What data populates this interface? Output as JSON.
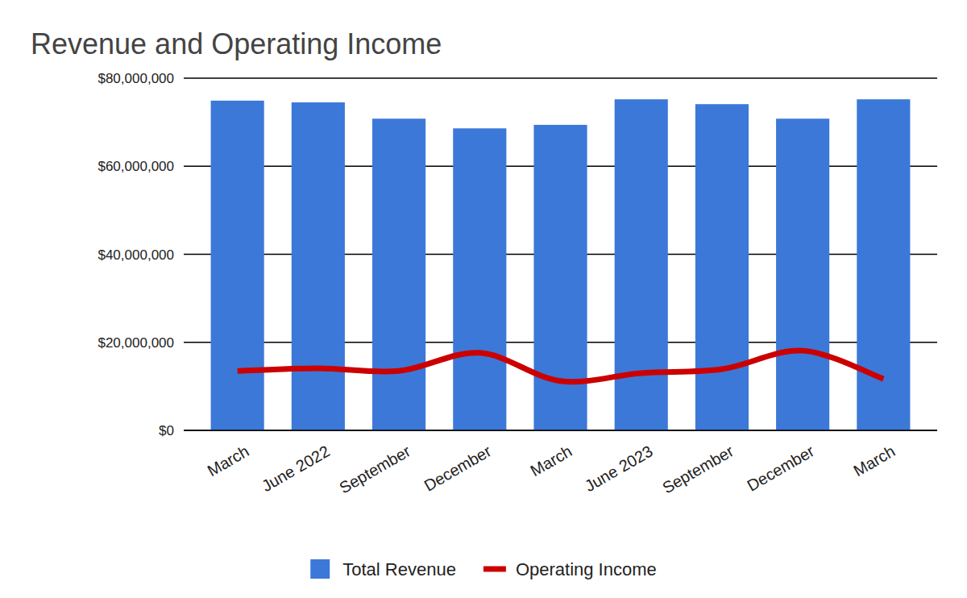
{
  "chart_data": {
    "type": "bar",
    "title": "Revenue and Operating Income",
    "categories": [
      "March",
      "June 2022",
      "September",
      "December",
      "March",
      "June 2023",
      "September",
      "December",
      "March"
    ],
    "series": [
      {
        "name": "Total Revenue",
        "type": "bar",
        "color": "#3c78d8",
        "values": [
          74900000,
          74500000,
          70800000,
          68600000,
          69400000,
          75200000,
          74100000,
          70800000,
          75200000
        ]
      },
      {
        "name": "Operating Income",
        "type": "line",
        "color": "#cc0000",
        "line_style": "smooth",
        "values": [
          13500000,
          14100000,
          13500000,
          17600000,
          11200000,
          13000000,
          13900000,
          18100000,
          11700000
        ]
      }
    ],
    "ylim": [
      0,
      80000000
    ],
    "yticks": [
      {
        "value": 0,
        "label": "$0"
      },
      {
        "value": 20000000,
        "label": "$20,000,000"
      },
      {
        "value": 40000000,
        "label": "$40,000,000"
      },
      {
        "value": 60000000,
        "label": "$60,000,000"
      },
      {
        "value": 80000000,
        "label": "$80,000,000"
      }
    ],
    "grid": true,
    "legend": "bottom"
  }
}
